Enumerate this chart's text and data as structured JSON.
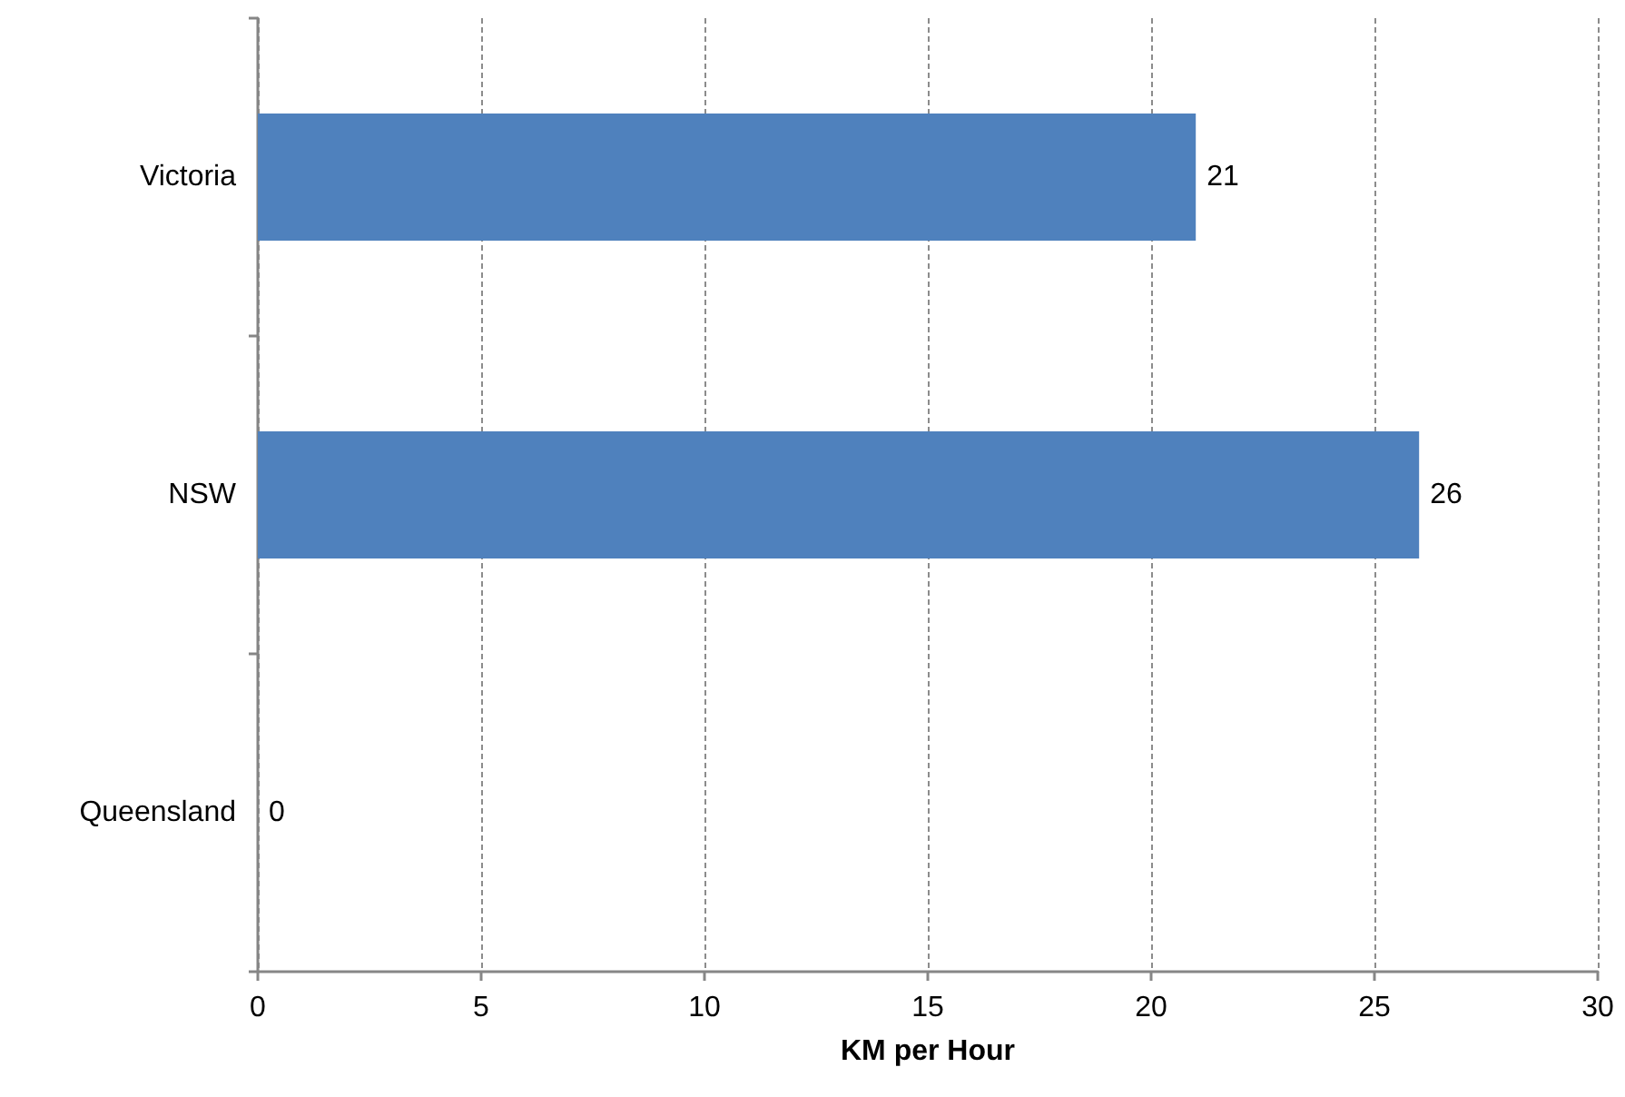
{
  "chart_data": {
    "type": "bar",
    "orientation": "horizontal",
    "xlabel": "KM per Hour",
    "categories": [
      "Victoria",
      "NSW",
      "Queensland"
    ],
    "values": [
      21,
      26,
      0
    ],
    "color": "#4f81bd",
    "xlim": [
      0,
      30
    ],
    "xticks": [
      0,
      5,
      10,
      15,
      20,
      25,
      30
    ],
    "grid": "x",
    "data_labels": true
  }
}
